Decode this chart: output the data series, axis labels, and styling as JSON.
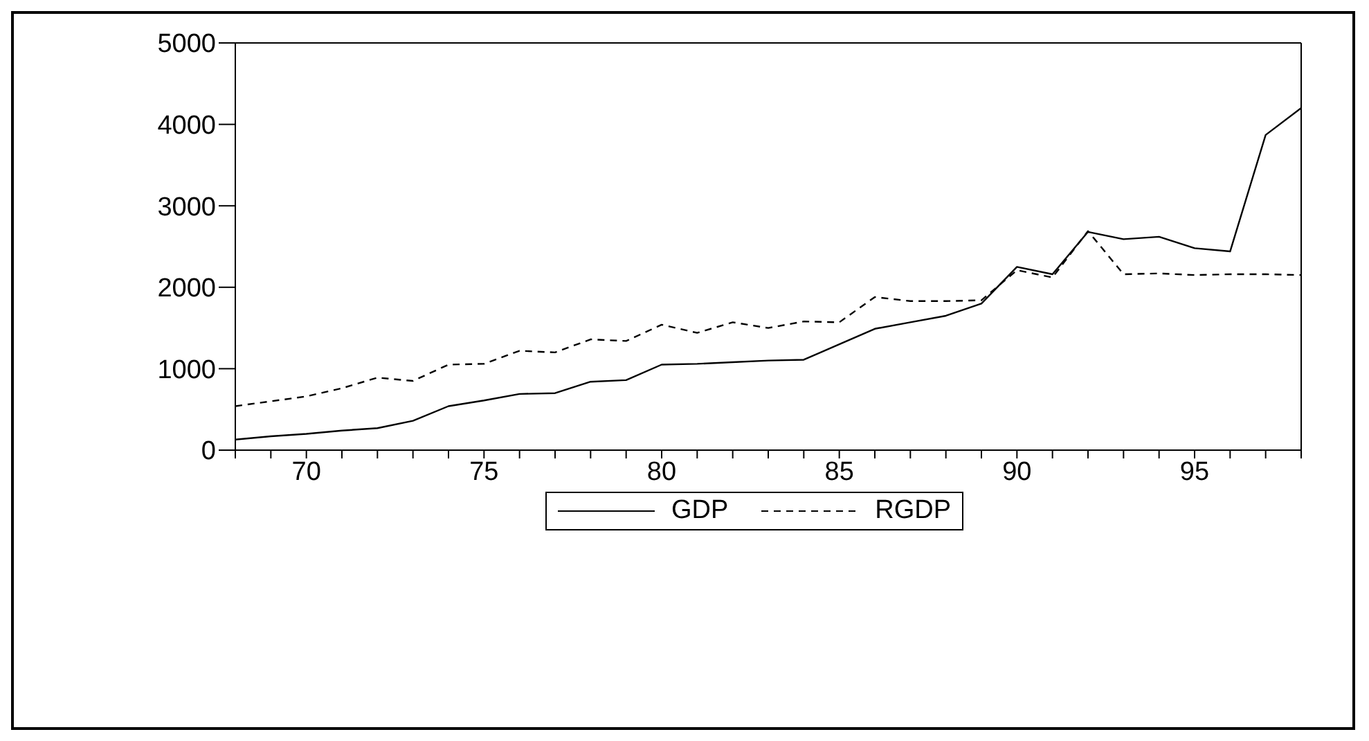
{
  "chart_data": {
    "type": "line",
    "x": [
      68,
      69,
      70,
      71,
      72,
      73,
      74,
      75,
      76,
      77,
      78,
      79,
      80,
      81,
      82,
      83,
      84,
      85,
      86,
      87,
      88,
      89,
      90,
      91,
      92,
      93,
      94,
      95,
      96,
      97,
      98
    ],
    "series": [
      {
        "name": "GDP",
        "color": "#000000",
        "line_style": "solid",
        "values": [
          130,
          170,
          200,
          240,
          270,
          360,
          540,
          610,
          690,
          700,
          840,
          860,
          1050,
          1060,
          1080,
          1100,
          1110,
          1300,
          1490,
          1570,
          1650,
          1800,
          2250,
          2160,
          2680,
          2590,
          2620,
          2480,
          2440,
          3870,
          4200
        ]
      },
      {
        "name": "RGDP",
        "color": "#000000",
        "line_style": "dashed",
        "values": [
          540,
          600,
          660,
          760,
          890,
          850,
          1050,
          1060,
          1220,
          1200,
          1360,
          1340,
          1540,
          1440,
          1570,
          1500,
          1580,
          1570,
          1880,
          1830,
          1830,
          1840,
          2210,
          2120,
          2690,
          2160,
          2170,
          2150,
          2160,
          2160,
          2150
        ]
      }
    ],
    "xlim": [
      68,
      98
    ],
    "xticks": [
      {
        "value": 68,
        "label": null
      },
      {
        "value": 69,
        "label": null
      },
      70,
      {
        "value": 71,
        "label": null
      },
      {
        "value": 72,
        "label": null
      },
      {
        "value": 73,
        "label": null
      },
      {
        "value": 74,
        "label": null
      },
      75,
      {
        "value": 76,
        "label": null
      },
      {
        "value": 77,
        "label": null
      },
      {
        "value": 78,
        "label": null
      },
      {
        "value": 79,
        "label": null
      },
      80,
      {
        "value": 81,
        "label": null
      },
      {
        "value": 82,
        "label": null
      },
      {
        "value": 83,
        "label": null
      },
      {
        "value": 84,
        "label": null
      },
      85,
      {
        "value": 86,
        "label": null
      },
      {
        "value": 87,
        "label": null
      },
      {
        "value": 88,
        "label": null
      },
      {
        "value": 89,
        "label": null
      },
      90,
      {
        "value": 91,
        "label": null
      },
      {
        "value": 92,
        "label": null
      },
      {
        "value": 93,
        "label": null
      },
      {
        "value": 94,
        "label": null
      },
      95,
      {
        "value": 96,
        "label": null
      },
      {
        "value": 97,
        "label": null
      },
      {
        "value": 98,
        "label": null
      }
    ],
    "ylim": [
      0,
      5000
    ],
    "yticks": [
      0,
      1000,
      2000,
      3000,
      4000,
      5000
    ],
    "grid": false,
    "legend": "bottom",
    "marker": "none"
  }
}
